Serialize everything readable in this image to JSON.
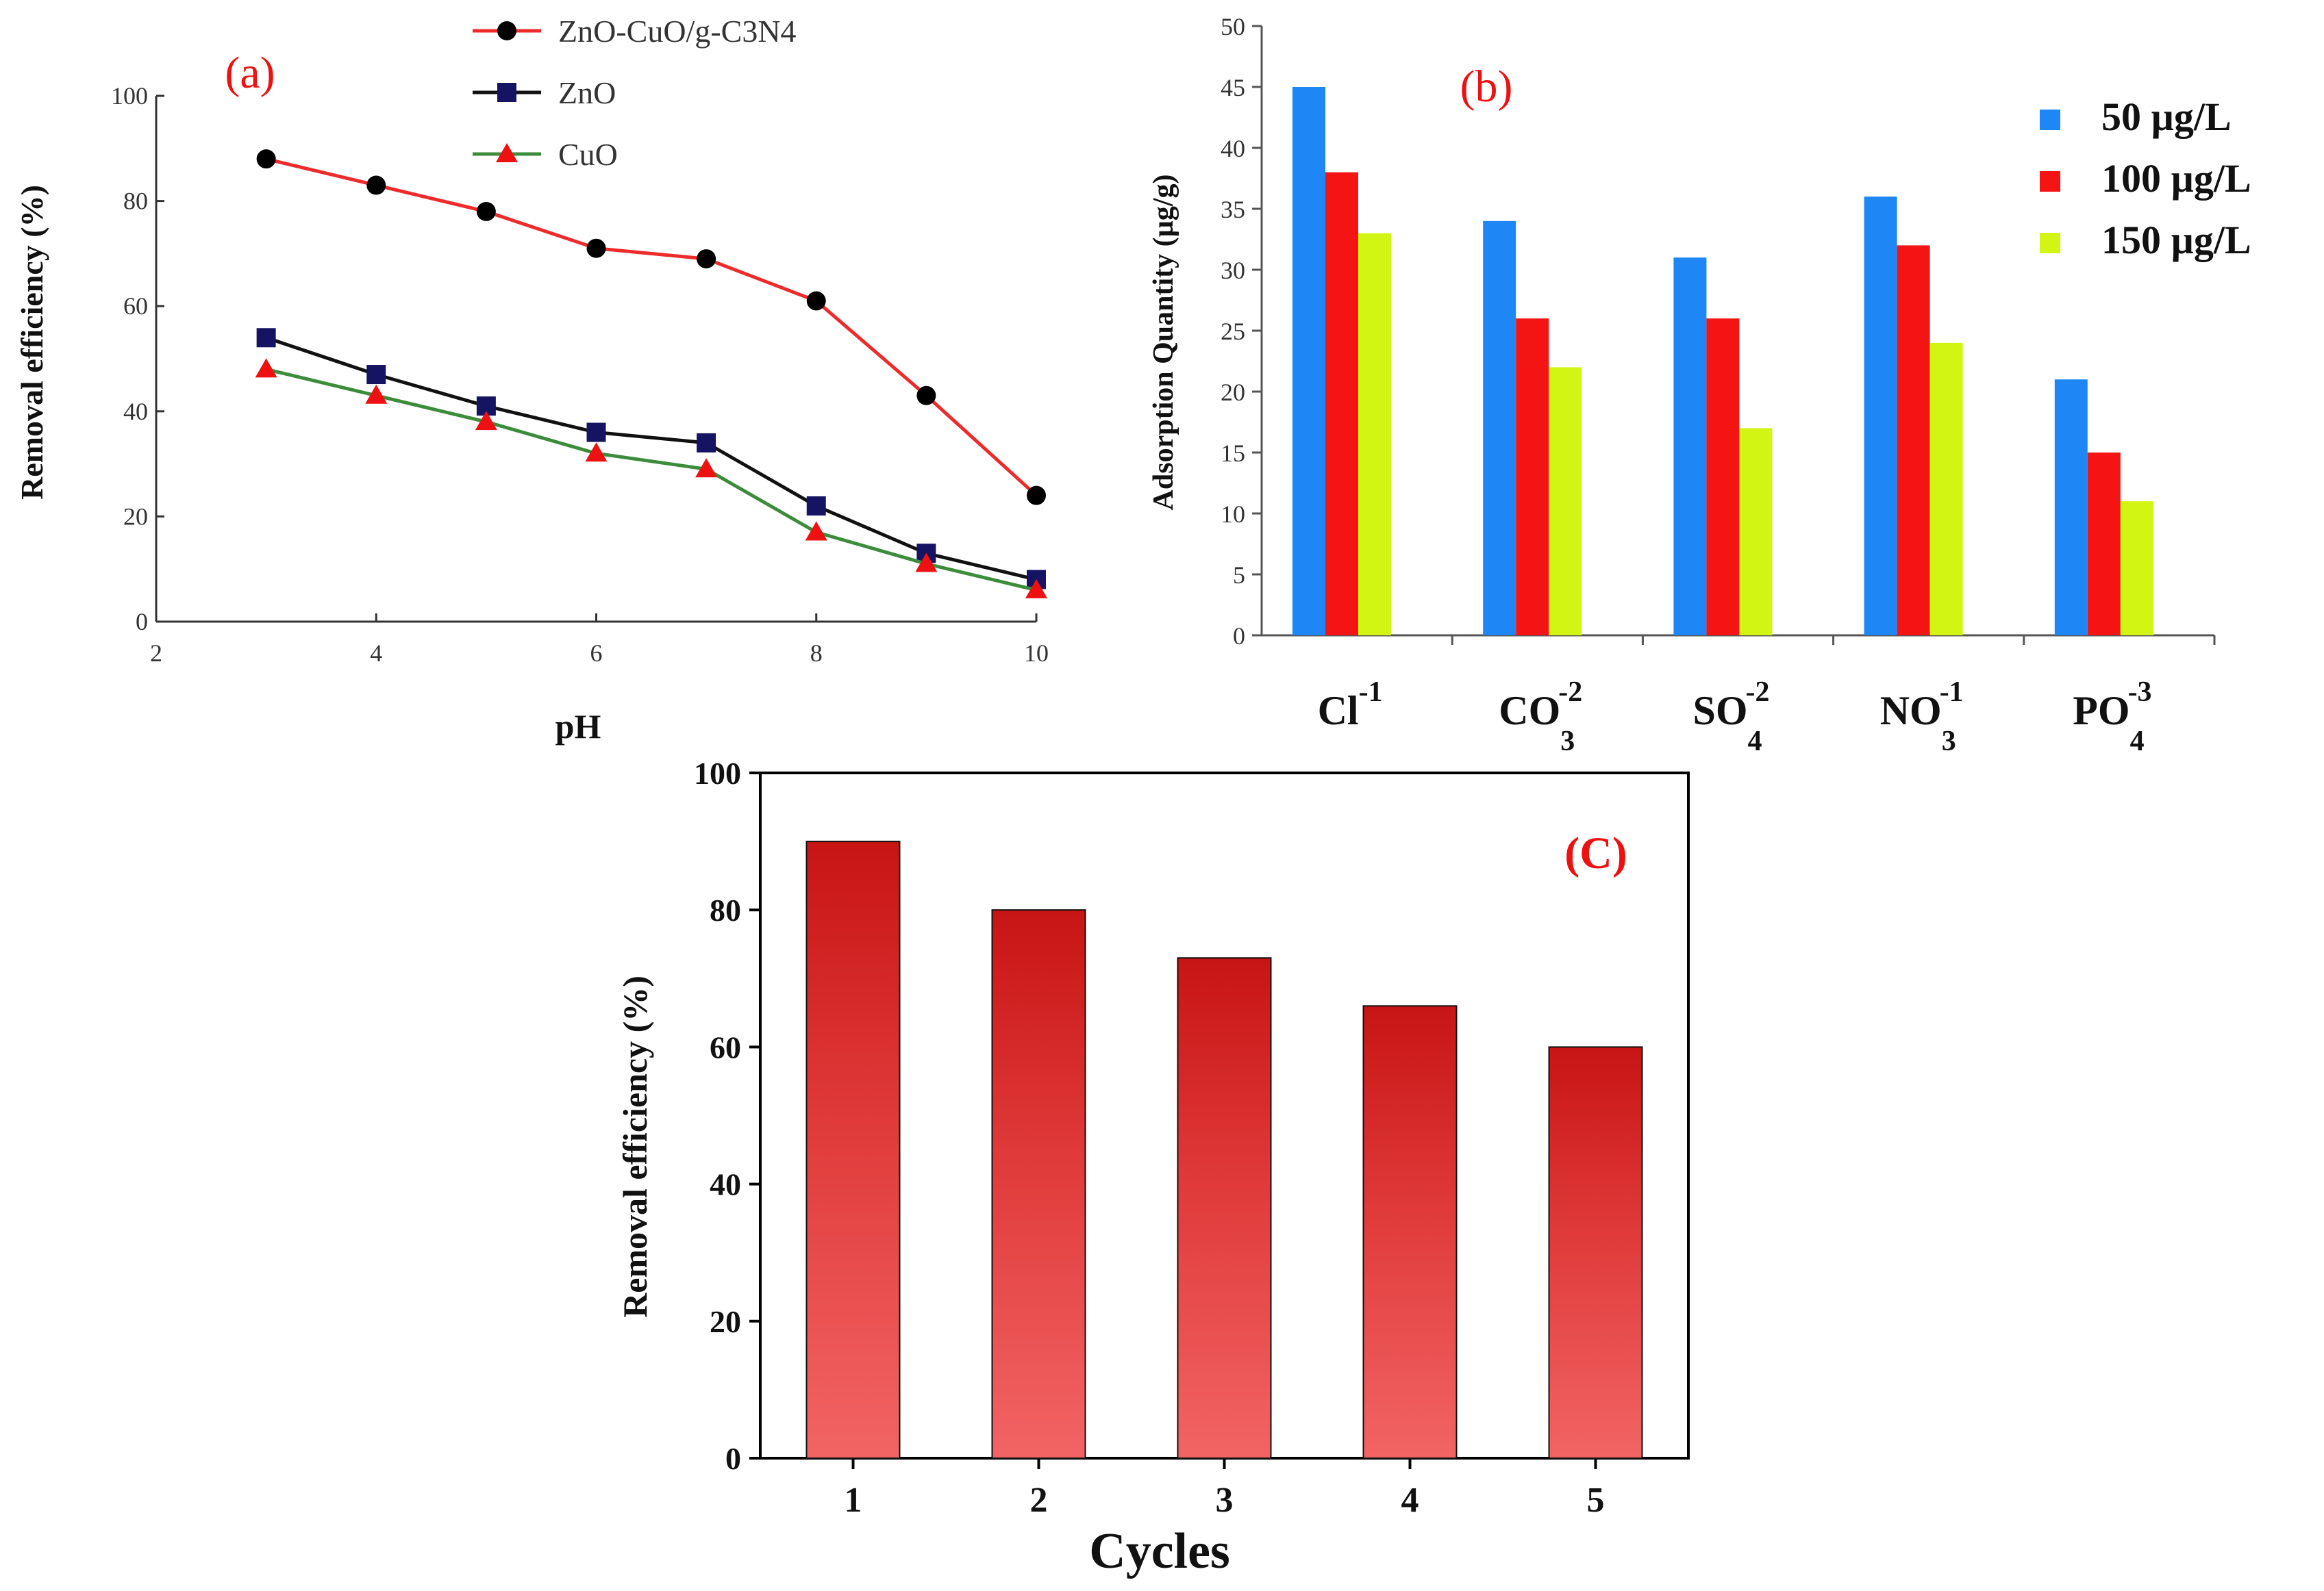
{
  "chart_data": [
    {
      "panel": "(a)",
      "type": "line",
      "title": "",
      "xlabel": "pH",
      "ylabel": "Removal efficiency (%)",
      "xlim": [
        2,
        10
      ],
      "ylim": [
        0,
        100
      ],
      "xticks": [
        2,
        4,
        6,
        8,
        10
      ],
      "yticks": [
        0,
        20,
        40,
        60,
        80,
        100
      ],
      "grid": false,
      "legend_position": "top",
      "x": [
        3,
        4,
        5,
        6,
        7,
        8,
        9,
        10
      ],
      "series": [
        {
          "name": "ZnO-CuO/g-C3N4",
          "values": [
            88,
            83,
            78,
            71,
            69,
            61,
            43,
            24
          ],
          "line_color": "#ee2a2a",
          "marker": "circle",
          "marker_color": "#000000"
        },
        {
          "name": "ZnO",
          "values": [
            54,
            47,
            41,
            36,
            34,
            22,
            13,
            8
          ],
          "line_color": "#111111",
          "marker": "square",
          "marker_color": "#141463"
        },
        {
          "name": "CuO",
          "values": [
            48,
            43,
            38,
            32,
            29,
            17,
            11,
            6
          ],
          "line_color": "#3c8c3c",
          "marker": "triangle",
          "marker_color": "#ee1111"
        }
      ]
    },
    {
      "panel": "(b)",
      "type": "bar",
      "title": "",
      "xlabel": "",
      "ylabel": "Adsorption Quantity (µg/g)",
      "ylim": [
        0,
        50
      ],
      "yticks": [
        0,
        5,
        10,
        15,
        20,
        25,
        30,
        35,
        40,
        45,
        50
      ],
      "grid": false,
      "legend_position": "right",
      "categories": [
        {
          "base": "Cl",
          "sub": "",
          "sup": "-1"
        },
        {
          "base": "CO",
          "sub": "3",
          "sup": "-2"
        },
        {
          "base": "SO",
          "sub": "4",
          "sup": "-2"
        },
        {
          "base": "NO",
          "sub": "3",
          "sup": "-1"
        },
        {
          "base": "PO",
          "sub": "4",
          "sup": "-3"
        }
      ],
      "series": [
        {
          "name": "50 µg/L",
          "values": [
            45,
            34,
            31,
            36,
            21
          ],
          "color": "#1e87f5"
        },
        {
          "name": "100 µg/L",
          "values": [
            38,
            26,
            26,
            32,
            15
          ],
          "color": "#f51414"
        },
        {
          "name": "150 µg/L",
          "values": [
            33,
            22,
            17,
            24,
            11
          ],
          "color": "#d2f514"
        }
      ]
    },
    {
      "panel": "(C)",
      "type": "bar",
      "title": "",
      "xlabel": "Cycles",
      "ylabel": "Removal efficiency (%)",
      "ylim": [
        0,
        100
      ],
      "yticks": [
        0,
        20,
        40,
        60,
        80,
        100
      ],
      "grid": false,
      "categories": [
        "1",
        "2",
        "3",
        "4",
        "5"
      ],
      "series": [
        {
          "name": "Removal efficiency",
          "values": [
            90,
            80,
            73,
            66,
            60
          ],
          "color_top": "#c81414",
          "color_bottom": "#f26464"
        }
      ]
    }
  ]
}
